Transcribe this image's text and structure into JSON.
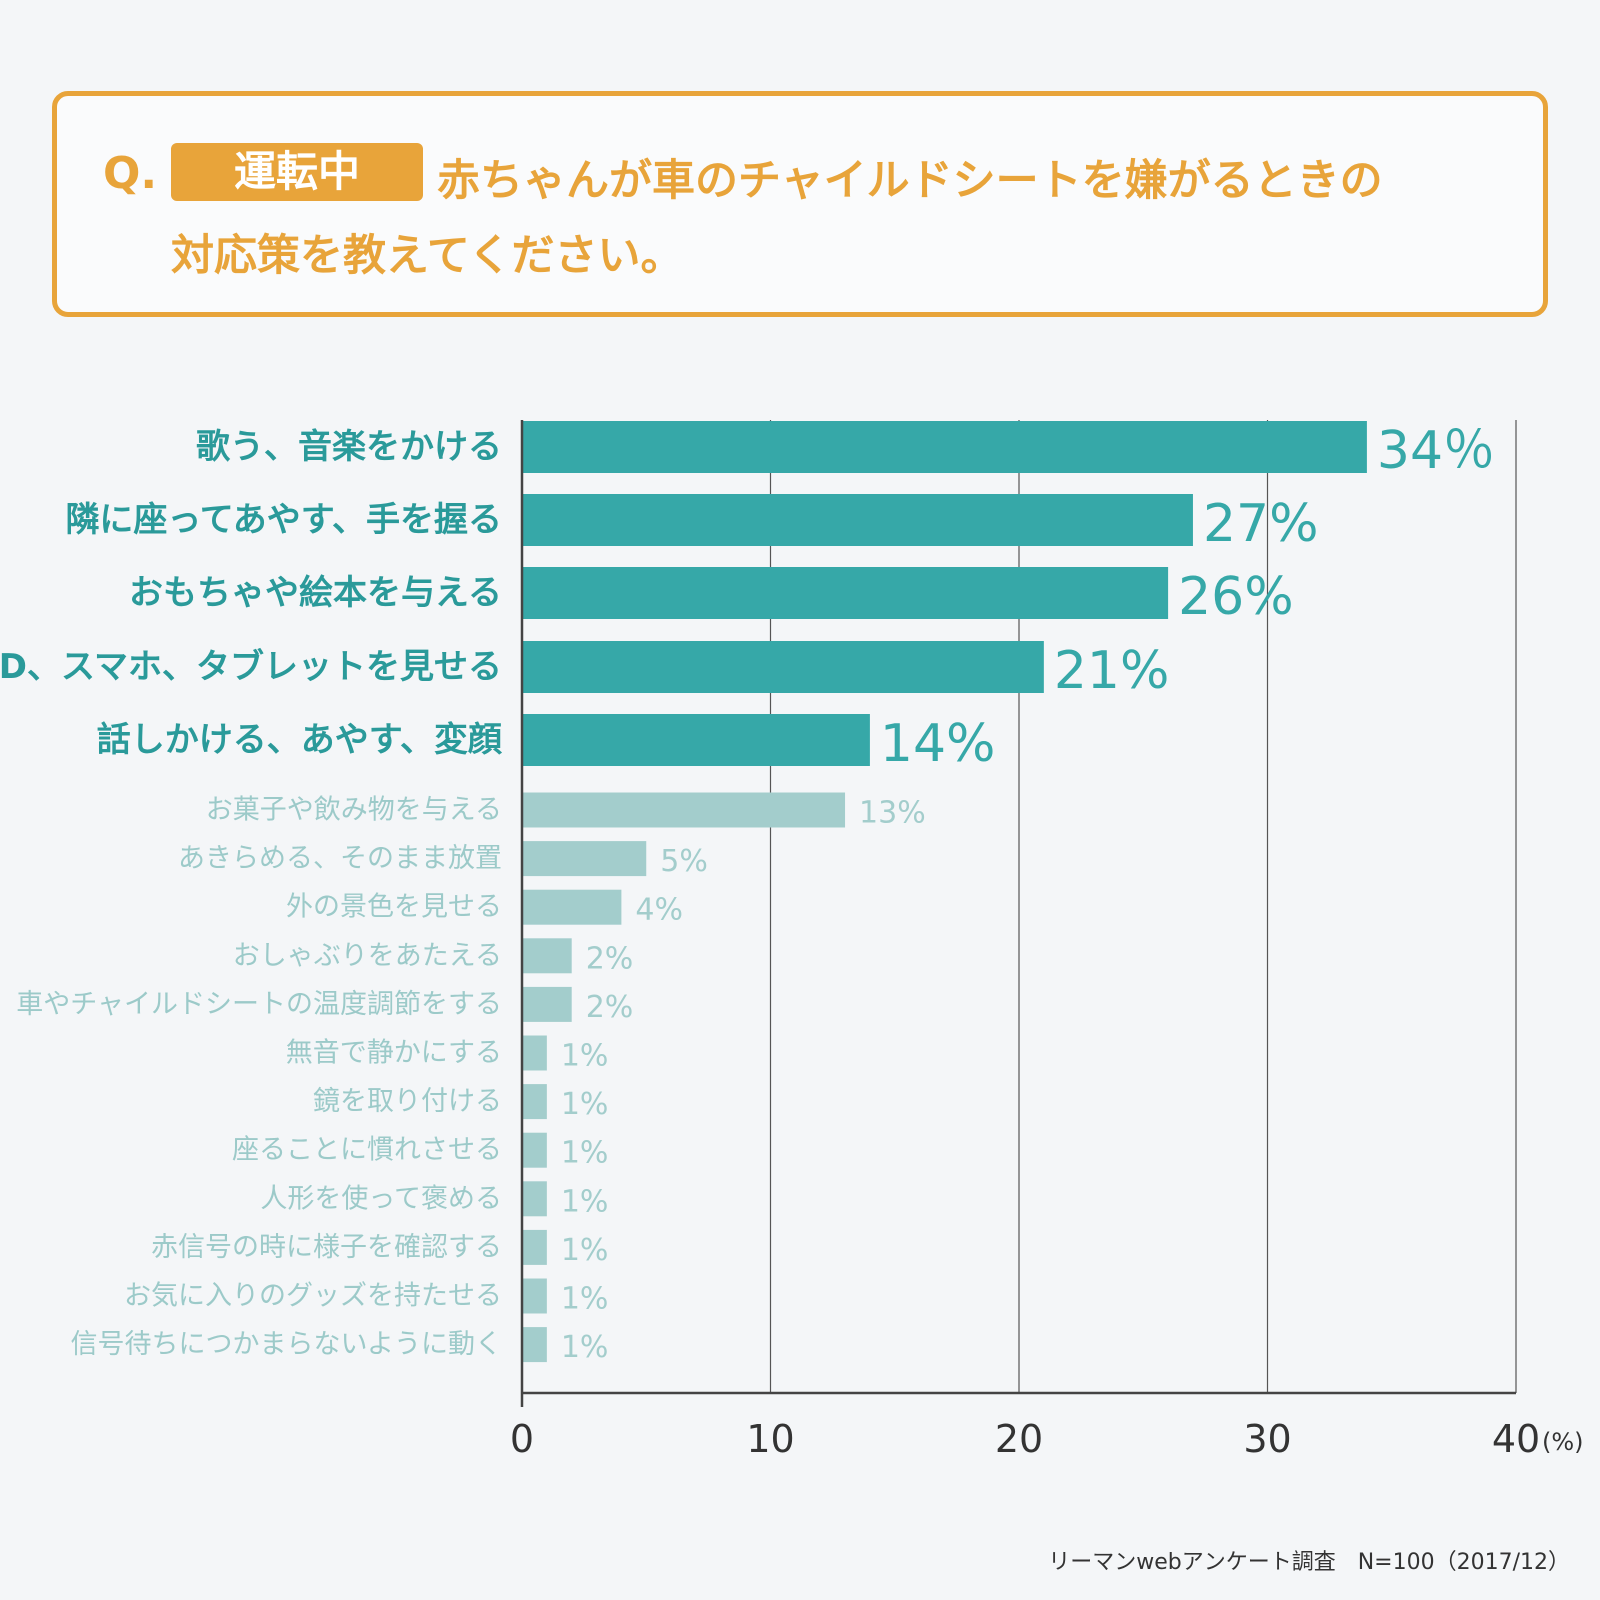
{
  "question": {
    "prefix": "Q.",
    "tag": "運転中",
    "line1": "赤ちゃんが車のチャイルドシートを嫌がるときの",
    "line2": "対応策を教えてください。"
  },
  "footer": "リーマンwebアンケート調査　N=100（2017/12）",
  "colors": {
    "accent": "#e8a43a",
    "top_bar": "#36a8a8",
    "top_label": "#2a9a9a",
    "other_bar": "#a3cdcc",
    "other_label": "#9ccac9",
    "grid": "#555555"
  },
  "chart_data": {
    "type": "bar",
    "orientation": "horizontal",
    "categories": [
      "歌う、音楽をかける",
      "隣に座ってあやす、手を握る",
      "おもちゃや絵本を与える",
      "DVD、スマホ、タブレットを見せる",
      "話しかける、あやす、変顔",
      "お菓子や飲み物を与える",
      "あきらめる、そのまま放置",
      "外の景色を見せる",
      "おしゃぶりをあたえる",
      "車やチャイルドシートの温度調節をする",
      "無音で静かにする",
      "鏡を取り付ける",
      "座ることに慣れさせる",
      "人形を使って褒める",
      "赤信号の時に様子を確認する",
      "お気に入りのグッズを持たせる",
      "信号待ちにつかまらないように動く"
    ],
    "values": [
      34,
      27,
      26,
      21,
      14,
      13,
      5,
      4,
      2,
      2,
      1,
      1,
      1,
      1,
      1,
      1,
      1
    ],
    "value_labels": [
      "34％",
      "27%",
      "26%",
      "21%",
      "14%",
      "13%",
      "5%",
      "4%",
      "2%",
      "2%",
      "1%",
      "1%",
      "1%",
      "1%",
      "1%",
      "1%",
      "1%"
    ],
    "highlighted_count": 5,
    "xlim": [
      0,
      40
    ],
    "xticks": [
      "0",
      "10",
      "20",
      "30",
      "40"
    ],
    "xunit": "(%)",
    "grid": true
  }
}
